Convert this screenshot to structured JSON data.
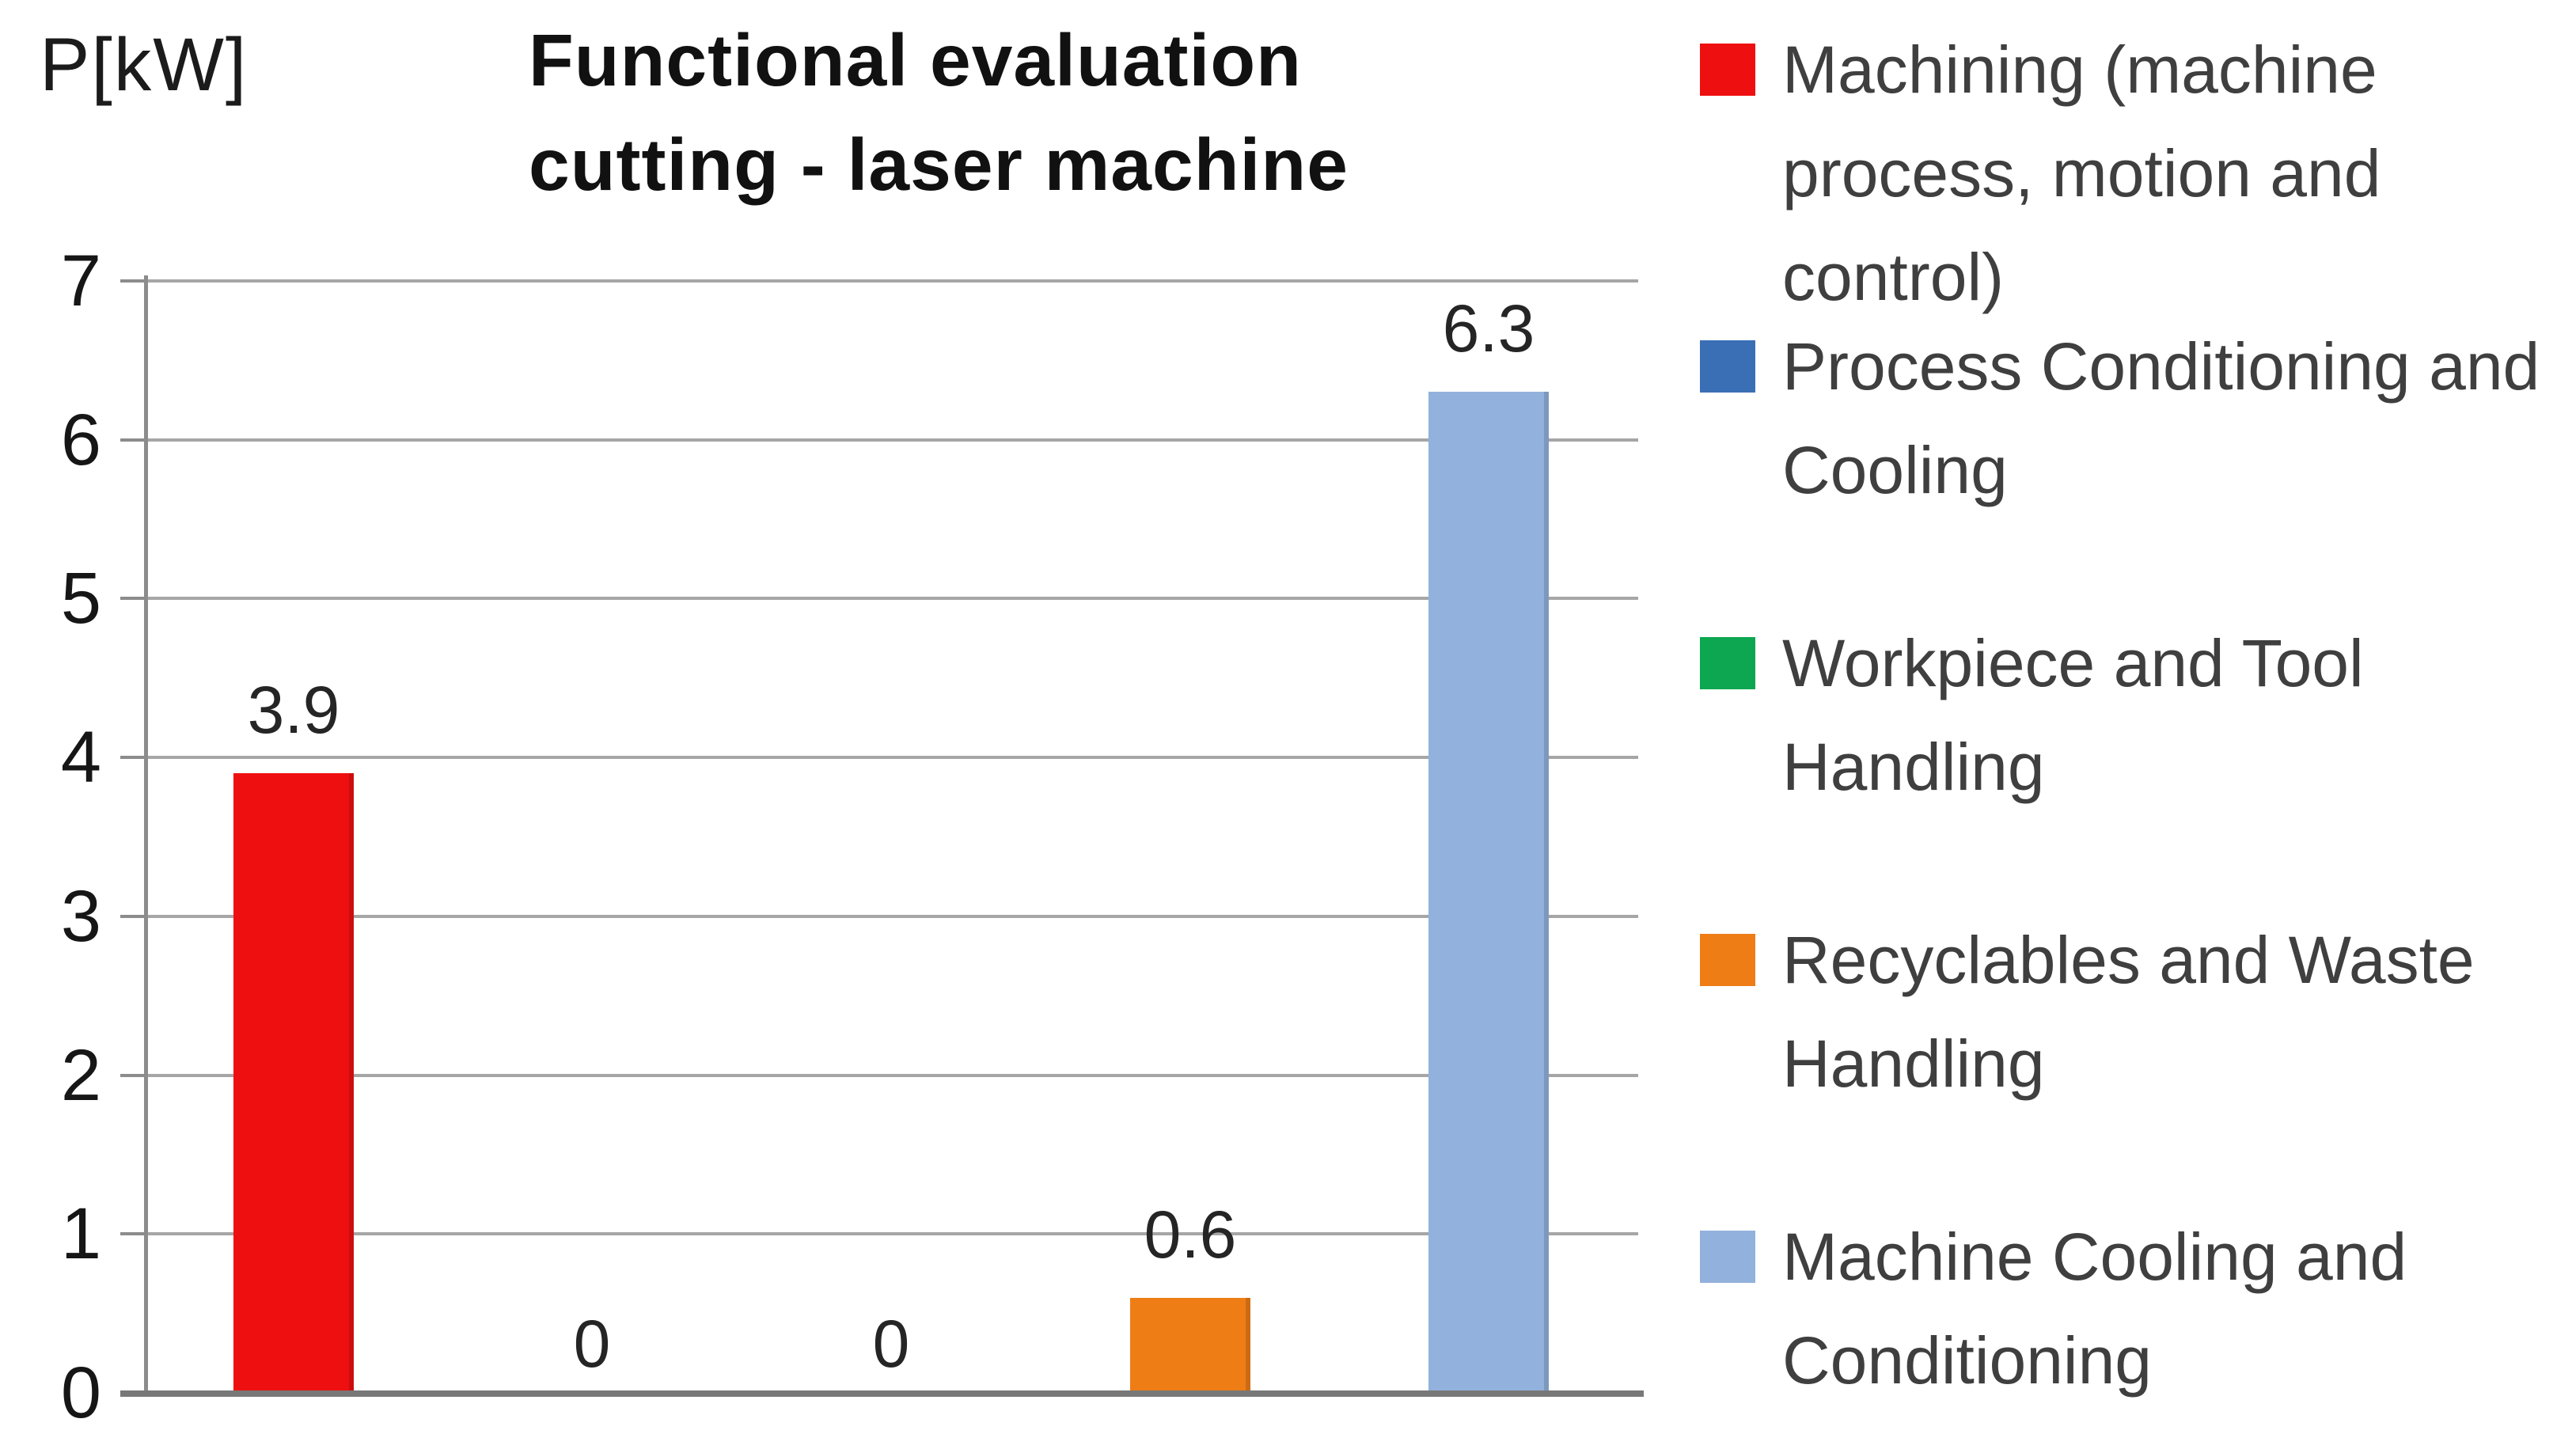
{
  "chart_data": {
    "type": "bar",
    "title": "Functional evaluation cutting - laser machine",
    "title_lines": [
      "Functional evaluation",
      "cutting - laser machine"
    ],
    "ylabel": "P[kW]",
    "xlabel": "",
    "ylim": [
      0,
      7
    ],
    "yticks": [
      "0",
      "1",
      "2",
      "3",
      "4",
      "5",
      "6",
      "7"
    ],
    "grid": "horizontal",
    "legend_position": "right",
    "categories": [
      "Machining (machine process, motion and control)",
      "Process Conditioning and Cooling",
      "Workpiece and Tool Handling",
      "Recyclables and Waste Handling",
      "Machine Cooling and Conditioning"
    ],
    "values": [
      3.9,
      0,
      0,
      0.6,
      6.3
    ],
    "bar_labels": [
      "3.9",
      "0",
      "0",
      "0.6",
      "6.3"
    ],
    "colors": [
      "#ee1010",
      "#3a6fb5",
      "#0ca750",
      "#ee7d16",
      "#92b1dc"
    ]
  },
  "legend": {
    "items": [
      {
        "label": "Machining (machine process, motion and control)",
        "color": "#ee1010"
      },
      {
        "label": "Process Conditioning and Cooling",
        "color": "#3a6fb5"
      },
      {
        "label": "Workpiece and Tool Handling",
        "color": "#0ca750"
      },
      {
        "label": "Recyclables and Waste Handling",
        "color": "#ee7d16"
      },
      {
        "label": "Machine Cooling and Conditioning",
        "color": "#92b1dc"
      }
    ]
  }
}
